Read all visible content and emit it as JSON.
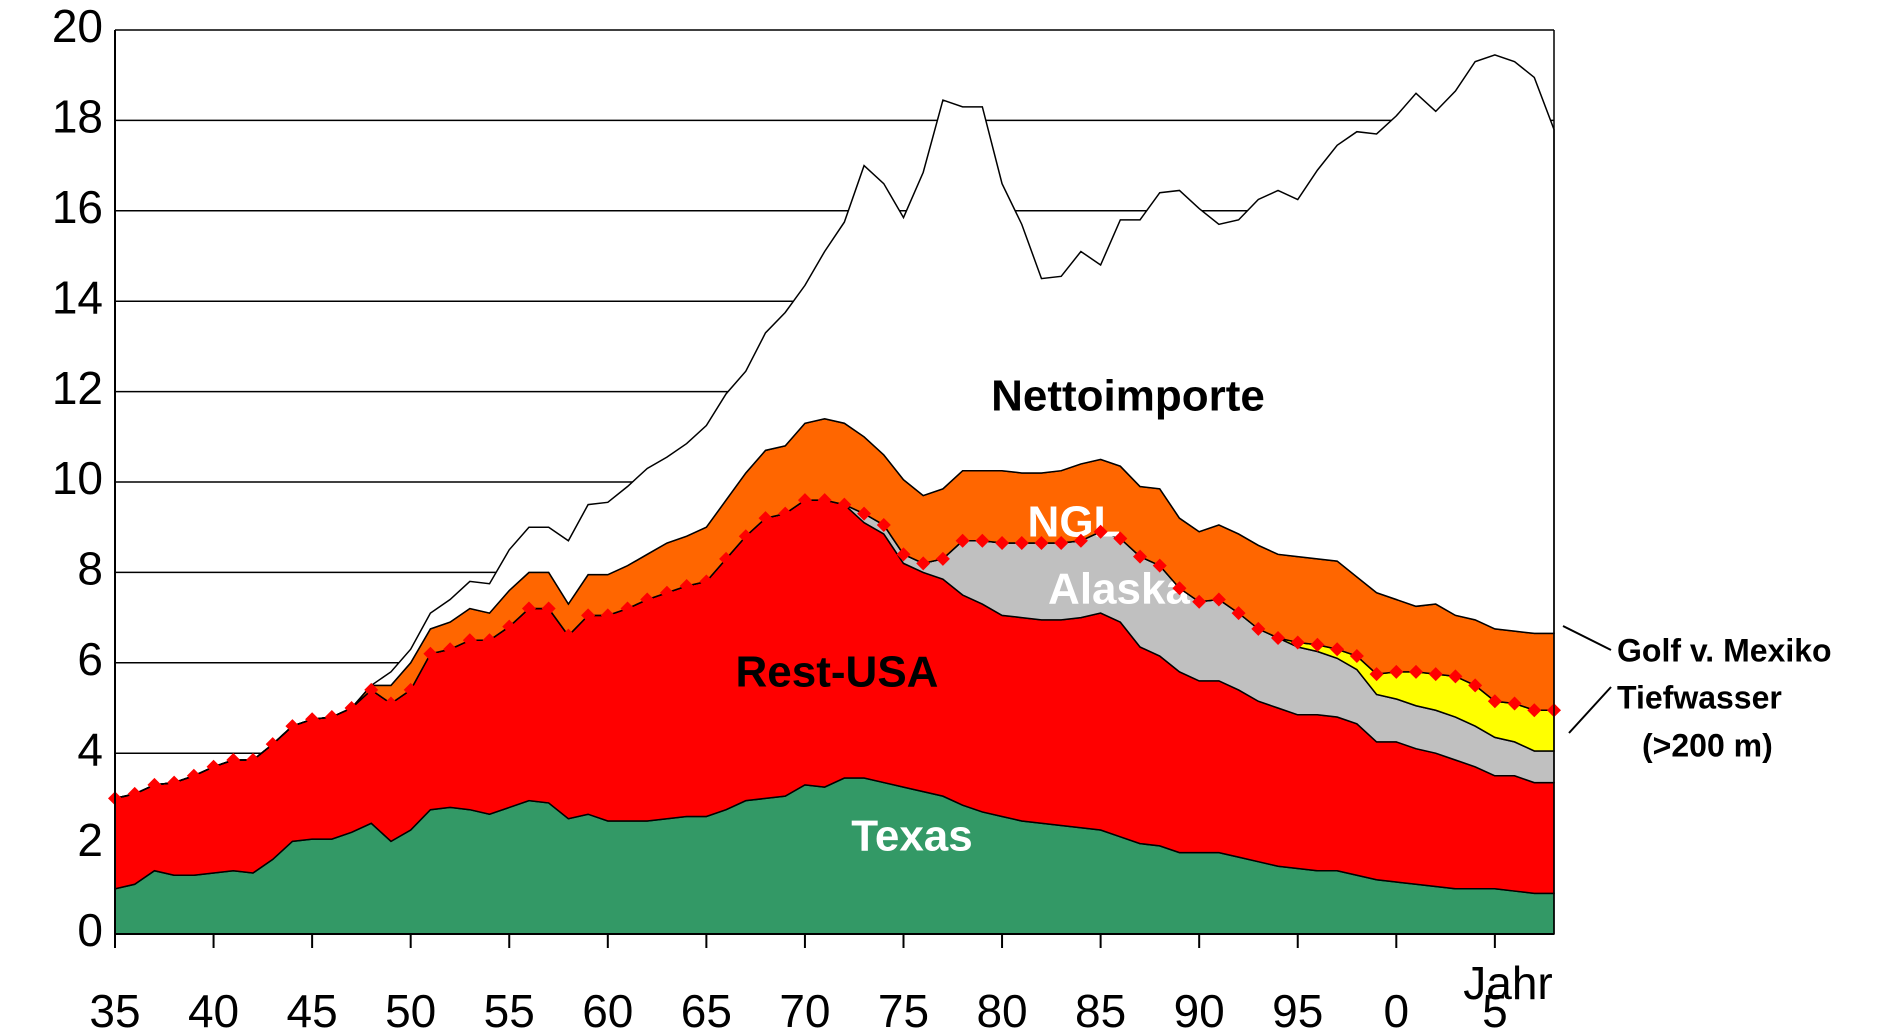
{
  "chart_data": {
    "type": "area",
    "stacked": true,
    "x": [
      1935,
      1936,
      1937,
      1938,
      1939,
      1940,
      1941,
      1942,
      1943,
      1944,
      1945,
      1946,
      1947,
      1948,
      1949,
      1950,
      1951,
      1952,
      1953,
      1954,
      1955,
      1956,
      1957,
      1958,
      1959,
      1960,
      1961,
      1962,
      1963,
      1964,
      1965,
      1966,
      1967,
      1968,
      1969,
      1970,
      1971,
      1972,
      1973,
      1974,
      1975,
      1976,
      1977,
      1978,
      1979,
      1980,
      1981,
      1982,
      1983,
      1984,
      1985,
      1986,
      1987,
      1988,
      1989,
      1990,
      1991,
      1992,
      1993,
      1994,
      1995,
      1996,
      1997,
      1998,
      1999,
      2000,
      2001,
      2002,
      2003,
      2004,
      2005,
      2006,
      2007,
      2008
    ],
    "series": [
      {
        "name": "Texas",
        "color": "#339966",
        "values": [
          1.0,
          1.1,
          1.4,
          1.3,
          1.3,
          1.35,
          1.4,
          1.35,
          1.65,
          2.05,
          2.1,
          2.1,
          2.25,
          2.45,
          2.05,
          2.3,
          2.75,
          2.8,
          2.75,
          2.65,
          2.8,
          2.95,
          2.9,
          2.55,
          2.65,
          2.5,
          2.5,
          2.5,
          2.55,
          2.6,
          2.6,
          2.75,
          2.95,
          3.0,
          3.05,
          3.3,
          3.25,
          3.45,
          3.45,
          3.35,
          3.25,
          3.15,
          3.05,
          2.85,
          2.7,
          2.6,
          2.5,
          2.45,
          2.4,
          2.35,
          2.3,
          2.15,
          2.0,
          1.95,
          1.8,
          1.8,
          1.8,
          1.7,
          1.6,
          1.5,
          1.45,
          1.4,
          1.4,
          1.3,
          1.2,
          1.15,
          1.1,
          1.05,
          1.0,
          1.0,
          1.0,
          0.95,
          0.9,
          0.9
        ]
      },
      {
        "name": "Rest-USA",
        "color": "#ff0000",
        "values": [
          2.0,
          2.0,
          1.9,
          2.05,
          2.2,
          2.35,
          2.45,
          2.5,
          2.55,
          2.55,
          2.65,
          2.7,
          2.75,
          2.95,
          3.05,
          3.1,
          3.45,
          3.5,
          3.75,
          3.85,
          4.0,
          4.25,
          4.3,
          4.05,
          4.4,
          4.55,
          4.7,
          4.9,
          5.0,
          5.1,
          5.2,
          5.55,
          5.85,
          6.2,
          6.25,
          6.3,
          6.35,
          6.05,
          5.65,
          5.5,
          4.95,
          4.85,
          4.8,
          4.65,
          4.6,
          4.45,
          4.5,
          4.5,
          4.55,
          4.65,
          4.8,
          4.75,
          4.35,
          4.2,
          4.0,
          3.8,
          3.8,
          3.7,
          3.55,
          3.5,
          3.4,
          3.45,
          3.4,
          3.35,
          3.05,
          3.1,
          3.0,
          2.95,
          2.85,
          2.7,
          2.5,
          2.55,
          2.45,
          2.45
        ]
      },
      {
        "name": "Alaska",
        "color": "#c0c0c0",
        "values": [
          0,
          0,
          0,
          0,
          0,
          0,
          0,
          0,
          0,
          0,
          0,
          0,
          0,
          0,
          0,
          0,
          0,
          0,
          0,
          0,
          0,
          0,
          0,
          0,
          0,
          0,
          0,
          0,
          0,
          0,
          0,
          0,
          0,
          0,
          0,
          0,
          0,
          0,
          0.2,
          0.2,
          0.2,
          0.2,
          0.45,
          1.2,
          1.4,
          1.6,
          1.65,
          1.7,
          1.7,
          1.7,
          1.8,
          1.85,
          2.0,
          2.0,
          1.85,
          1.75,
          1.8,
          1.7,
          1.6,
          1.55,
          1.5,
          1.4,
          1.3,
          1.2,
          1.05,
          0.95,
          0.95,
          0.95,
          0.95,
          0.9,
          0.85,
          0.75,
          0.7,
          0.7
        ]
      },
      {
        "color": "#ffff00",
        "values": [
          0,
          0,
          0,
          0,
          0,
          0,
          0,
          0,
          0,
          0,
          0,
          0,
          0,
          0,
          0,
          0,
          0,
          0,
          0,
          0,
          0,
          0,
          0,
          0,
          0,
          0,
          0,
          0,
          0,
          0,
          0,
          0,
          0,
          0,
          0,
          0,
          0,
          0,
          0,
          0,
          0,
          0,
          0,
          0,
          0,
          0,
          0,
          0,
          0,
          0,
          0,
          0,
          0,
          0,
          0,
          0,
          0,
          0,
          0,
          0,
          0.1,
          0.15,
          0.2,
          0.3,
          0.45,
          0.6,
          0.75,
          0.8,
          0.9,
          0.9,
          0.8,
          0.85,
          0.9,
          0.9
        ]
      },
      {
        "name": "NGL",
        "color": "#ff6600",
        "values": [
          0,
          0,
          0,
          0,
          0,
          0,
          0,
          0,
          0,
          0,
          0,
          0,
          0,
          0.1,
          0.4,
          0.6,
          0.55,
          0.6,
          0.7,
          0.6,
          0.8,
          0.8,
          0.8,
          0.7,
          0.9,
          0.9,
          0.95,
          1.0,
          1.1,
          1.1,
          1.2,
          1.3,
          1.4,
          1.5,
          1.5,
          1.7,
          1.8,
          1.8,
          1.7,
          1.55,
          1.65,
          1.5,
          1.55,
          1.55,
          1.55,
          1.6,
          1.55,
          1.55,
          1.6,
          1.7,
          1.6,
          1.6,
          1.55,
          1.7,
          1.55,
          1.55,
          1.65,
          1.75,
          1.85,
          1.85,
          1.9,
          1.9,
          1.95,
          1.75,
          1.8,
          1.6,
          1.45,
          1.55,
          1.35,
          1.45,
          1.6,
          1.6,
          1.7,
          1.7
        ]
      },
      {
        "name": "Nettoimporte",
        "color": "#ffffff",
        "values": [
          0,
          0,
          0,
          0,
          0,
          0,
          0,
          0,
          0,
          0,
          0,
          0,
          0,
          0,
          0.3,
          0.3,
          0.35,
          0.5,
          0.6,
          0.65,
          0.9,
          1.0,
          1.0,
          1.4,
          1.55,
          1.6,
          1.75,
          1.9,
          1.9,
          2.05,
          2.25,
          2.35,
          2.25,
          2.6,
          2.95,
          3.05,
          3.7,
          4.45,
          6.0,
          6.0,
          5.8,
          7.15,
          8.6,
          8.05,
          8.05,
          6.35,
          5.5,
          4.3,
          4.3,
          4.7,
          4.3,
          5.45,
          5.9,
          6.55,
          7.25,
          7.15,
          6.65,
          6.95,
          7.65,
          8.05,
          7.9,
          8.6,
          9.2,
          9.85,
          10.15,
          10.7,
          11.35,
          10.9,
          11.6,
          12.35,
          12.7,
          12.6,
          12.3,
          11.15
        ]
      }
    ],
    "annotations": [
      "Golf v. Mexiko",
      "Tiefwasser",
      "(>200 m)"
    ],
    "xlabel": "Jahr",
    "xlim": [
      1935,
      2008
    ],
    "xticks": [
      {
        "value": 1935,
        "label": "35"
      },
      {
        "value": 1940,
        "label": "40"
      },
      {
        "value": 1945,
        "label": "45"
      },
      {
        "value": 1950,
        "label": "50"
      },
      {
        "value": 1955,
        "label": "55"
      },
      {
        "value": 1960,
        "label": "60"
      },
      {
        "value": 1965,
        "label": "65"
      },
      {
        "value": 1970,
        "label": "70"
      },
      {
        "value": 1975,
        "label": "75"
      },
      {
        "value": 1980,
        "label": "80"
      },
      {
        "value": 1985,
        "label": "85"
      },
      {
        "value": 1990,
        "label": "90"
      },
      {
        "value": 1995,
        "label": "95"
      },
      {
        "value": 2000,
        "label": "0"
      },
      {
        "value": 2005,
        "label": "5"
      }
    ],
    "ylim": [
      0,
      20
    ],
    "yticks": [
      0,
      2,
      4,
      6,
      8,
      10,
      12,
      14,
      16,
      18,
      20
    ],
    "grid": true
  }
}
